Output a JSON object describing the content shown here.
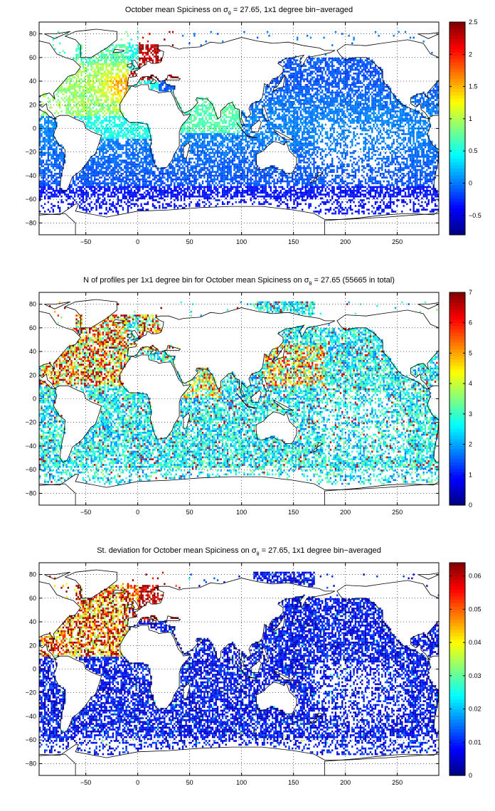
{
  "chart_data": [
    {
      "type": "heatmap",
      "title": {
        "pre": "October mean Spiciness on ",
        "sym": "σ",
        "sub": "θ",
        "post": " = 27.65, 1x1 degree bin−averaged"
      },
      "xlim": [
        -95,
        290
      ],
      "ylim": [
        -90,
        90
      ],
      "xticks": [
        -50,
        0,
        50,
        100,
        150,
        200,
        250
      ],
      "yticks": [
        -80,
        -60,
        -40,
        -20,
        0,
        20,
        40,
        60,
        80
      ],
      "grid": true,
      "colormap": "jet",
      "colorbar": {
        "min": -0.8,
        "max": 2.5,
        "ticks": [
          -0.5,
          0,
          0.5,
          1,
          1.5,
          2,
          2.5
        ]
      },
      "field": "spiciness"
    },
    {
      "type": "heatmap",
      "title": {
        "pre": "N of profiles per 1x1 degree bin for October mean Spiciness on ",
        "sym": "σ",
        "sub": "θ",
        "post": " = 27.65 (55665 in total)"
      },
      "xlim": [
        -95,
        290
      ],
      "ylim": [
        -90,
        90
      ],
      "xticks": [
        -50,
        0,
        50,
        100,
        150,
        200,
        250
      ],
      "yticks": [
        -80,
        -60,
        -40,
        -20,
        0,
        20,
        40,
        60,
        80
      ],
      "grid": true,
      "colormap": "jet",
      "colorbar": {
        "min": 0,
        "max": 7,
        "ticks": [
          0,
          1,
          2,
          3,
          4,
          5,
          6,
          7
        ]
      },
      "field": "count"
    },
    {
      "type": "heatmap",
      "title": {
        "pre": "St. deviation for October mean Spiciness on ",
        "sym": "σ",
        "sub": "θ",
        "post": " = 27.65, 1x1 degree bin−averaged"
      },
      "xlim": [
        -95,
        290
      ],
      "ylim": [
        -90,
        90
      ],
      "xticks": [
        -50,
        0,
        50,
        100,
        150,
        200,
        250
      ],
      "yticks": [
        -80,
        -60,
        -40,
        -20,
        0,
        20,
        40,
        60,
        80
      ],
      "grid": true,
      "colormap": "jet",
      "colorbar": {
        "min": 0,
        "max": 0.064,
        "ticks": [
          0,
          0.01,
          0.02,
          0.03,
          0.04,
          0.05,
          0.06
        ]
      },
      "field": "stdev"
    }
  ]
}
